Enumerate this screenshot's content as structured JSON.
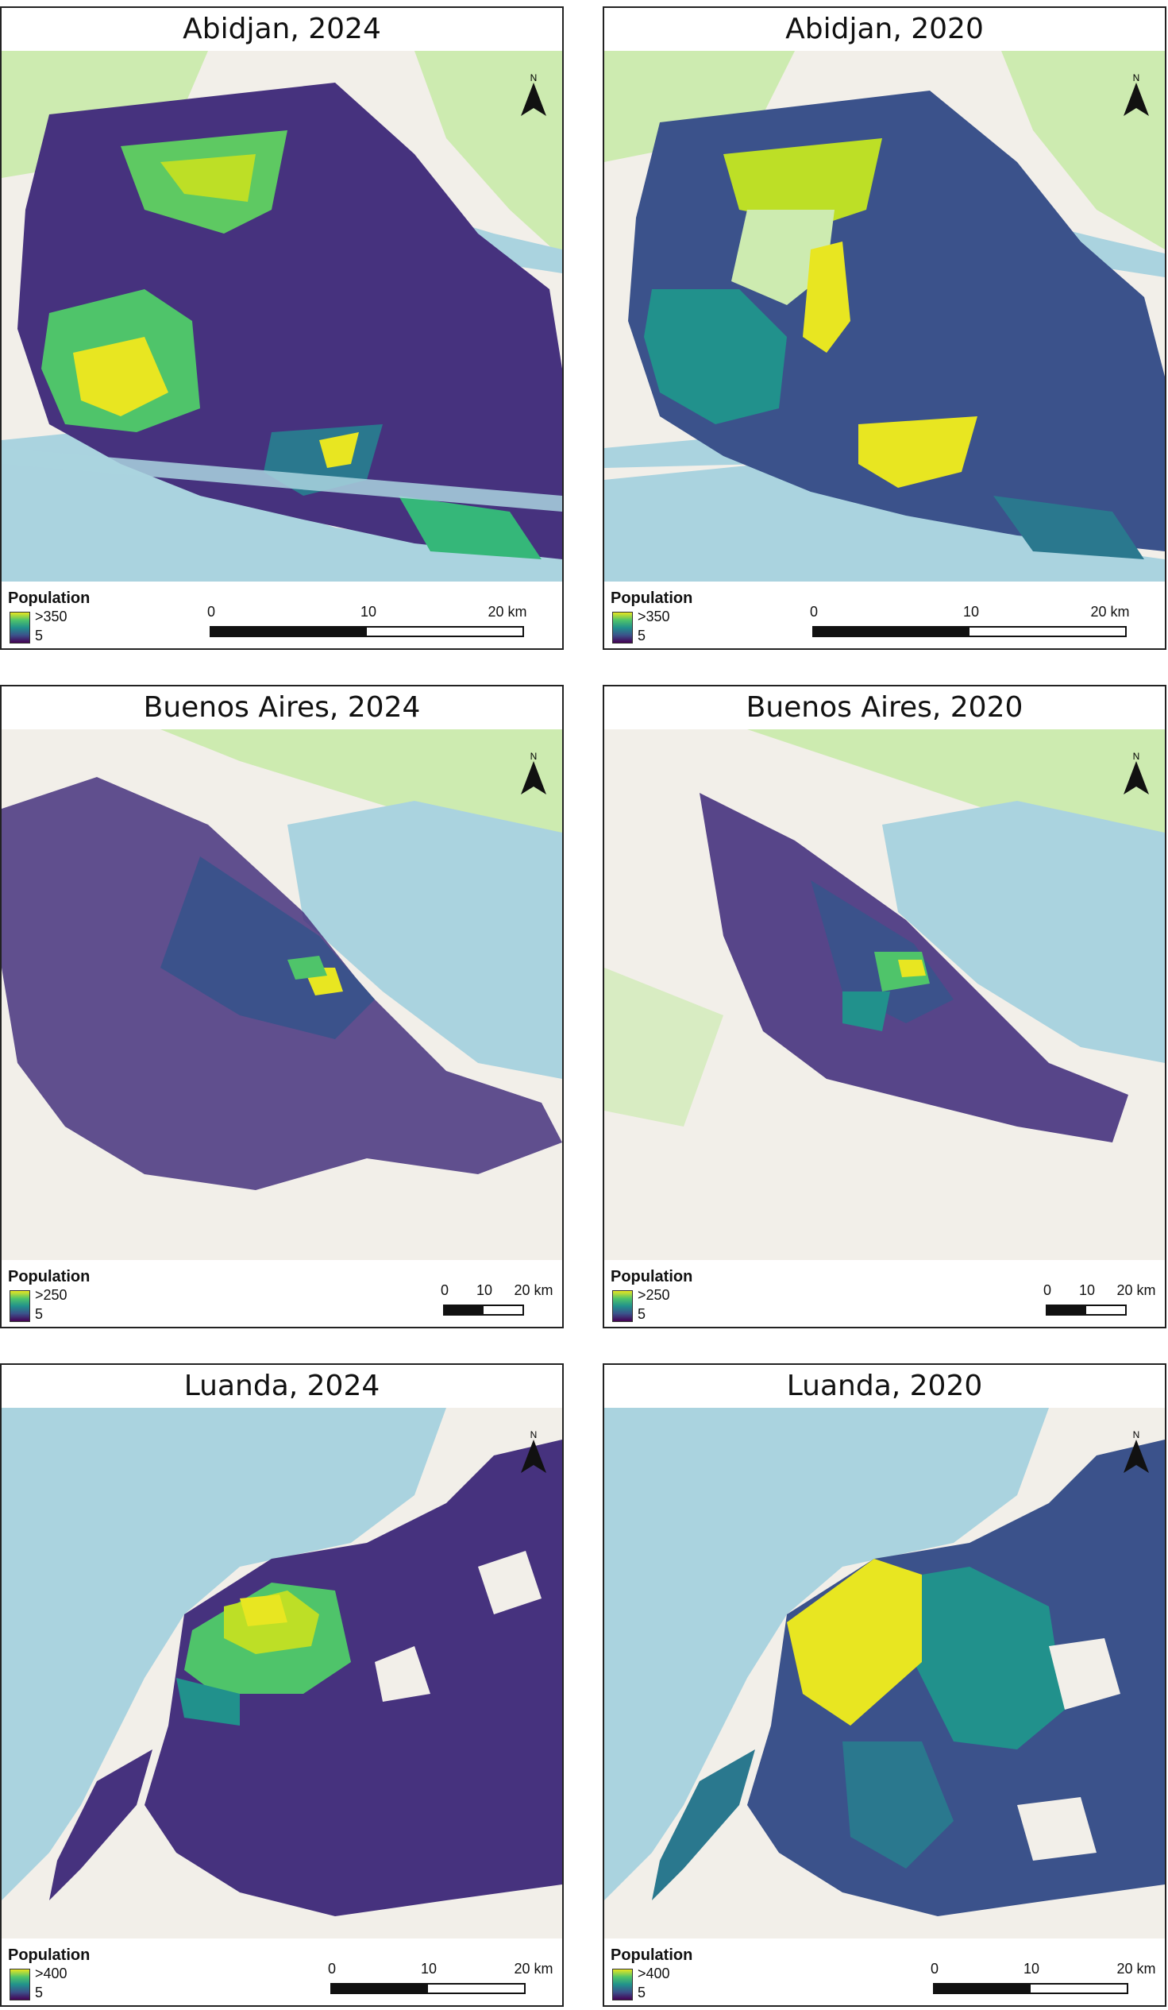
{
  "panels": [
    {
      "title": "Abidjan, 2024",
      "legend_title": "Population",
      "legend_max": ">350",
      "legend_min": "5",
      "scale": {
        "l0": "0",
        "l1": "10",
        "l2": "20 km"
      },
      "north_label": "N"
    },
    {
      "title": "Abidjan, 2020",
      "legend_title": "Population",
      "legend_max": ">350",
      "legend_min": "5",
      "scale": {
        "l0": "0",
        "l1": "10",
        "l2": "20 km"
      },
      "north_label": "N"
    },
    {
      "title": "Buenos Aires, 2024",
      "legend_title": "Population",
      "legend_max": ">250",
      "legend_min": "5",
      "scale": {
        "l0": "0",
        "l1": "10",
        "l2": "20 km"
      },
      "north_label": "N"
    },
    {
      "title": "Buenos Aires, 2020",
      "legend_title": "Population",
      "legend_max": ">250",
      "legend_min": "5",
      "scale": {
        "l0": "0",
        "l1": "10",
        "l2": "20 km"
      },
      "north_label": "N"
    },
    {
      "title": "Luanda, 2024",
      "legend_title": "Population",
      "legend_max": ">400",
      "legend_min": "5",
      "scale": {
        "l0": "0",
        "l1": "10",
        "l2": "20 km"
      },
      "north_label": "N"
    },
    {
      "title": "Luanda, 2020",
      "legend_title": "Population",
      "legend_max": ">400",
      "legend_min": "5",
      "scale": {
        "l0": "0",
        "l1": "10",
        "l2": "20 km"
      },
      "north_label": "N"
    }
  ],
  "colors": {
    "water": "#aad3df",
    "land": "#f2efe9",
    "park": "#cdebb0",
    "viridis_low": "#440154",
    "viridis_mid1": "#3b528b",
    "viridis_mid2": "#21918c",
    "viridis_mid3": "#4fc46a",
    "viridis_high": "#e8e621"
  }
}
